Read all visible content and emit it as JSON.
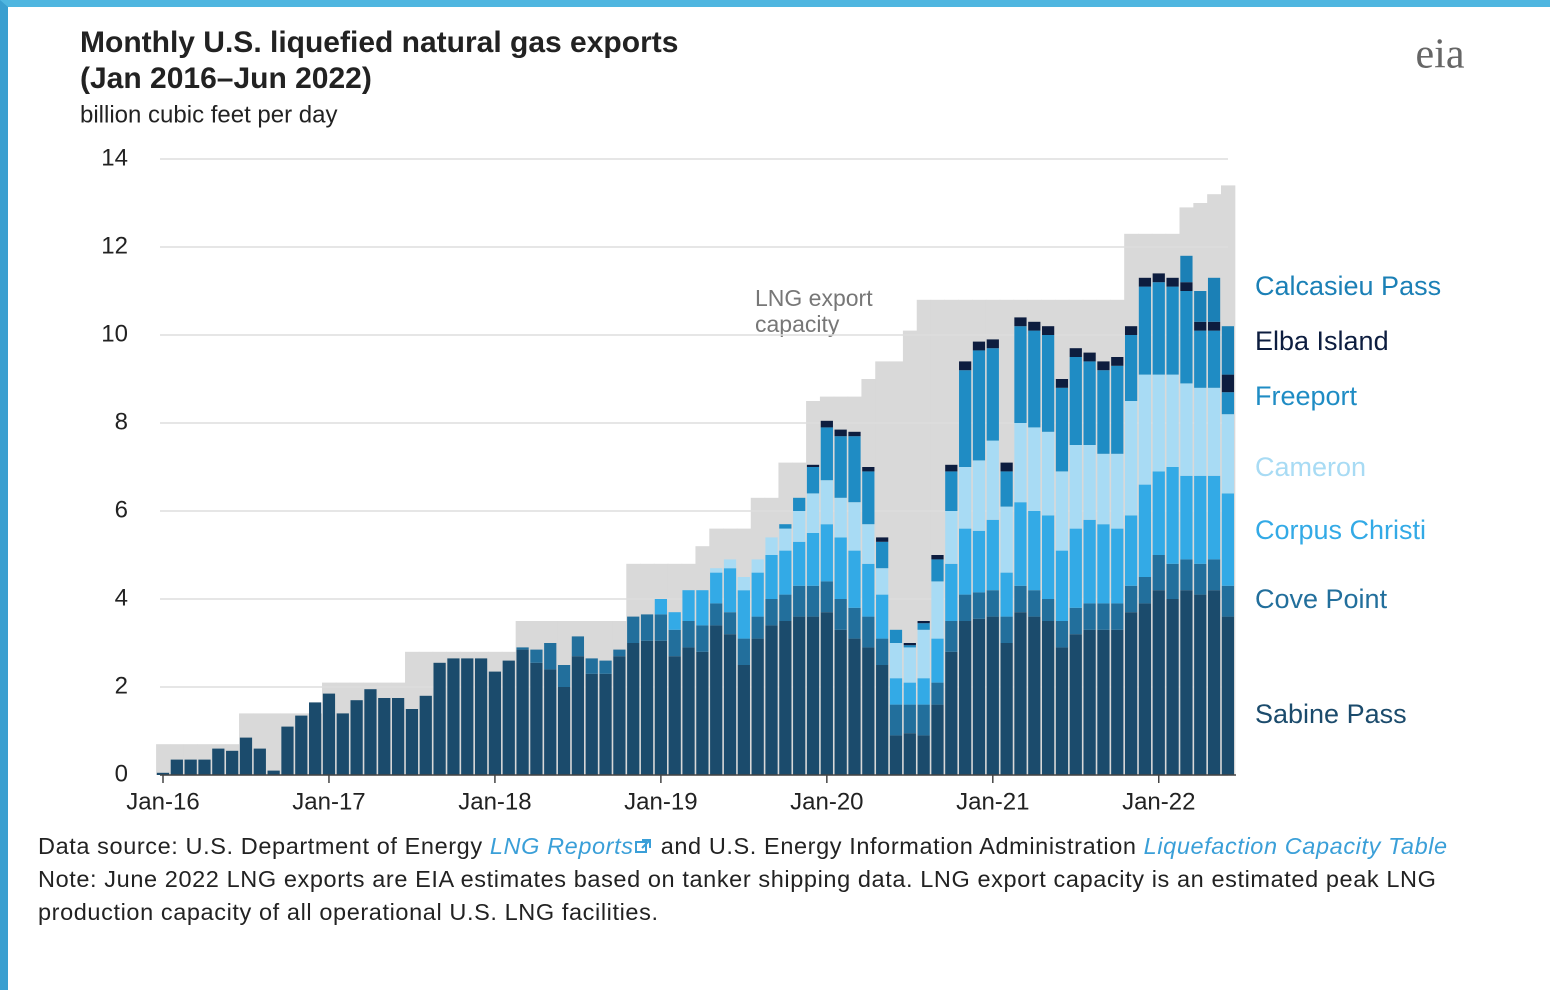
{
  "chart_data": {
    "type": "stacked_bar",
    "title": [
      "Monthly U.S. liquefied natural gas exports",
      "(Jan 2016–Jun 2022)"
    ],
    "subtitle": "billion cubic feet per day",
    "logo": "eia",
    "annotation": [
      "LNG export",
      "capacity"
    ],
    "categories": [
      "Jan-16",
      null,
      null,
      null,
      null,
      null,
      null,
      null,
      null,
      null,
      null,
      null,
      "Jan-17",
      null,
      null,
      null,
      null,
      null,
      null,
      null,
      null,
      null,
      null,
      null,
      "Jan-18",
      null,
      null,
      null,
      null,
      null,
      null,
      null,
      null,
      null,
      null,
      null,
      "Jan-19",
      null,
      null,
      null,
      null,
      null,
      null,
      null,
      null,
      null,
      null,
      null,
      "Jan-20",
      null,
      null,
      null,
      null,
      null,
      null,
      null,
      null,
      null,
      null,
      null,
      "Jan-21",
      null,
      null,
      null,
      null,
      null,
      null,
      null,
      null,
      null,
      null,
      null,
      "Jan-22",
      null,
      null,
      null,
      null,
      null
    ],
    "ylim": [
      0,
      14
    ],
    "yticks": [
      0,
      2,
      4,
      6,
      8,
      10,
      12,
      14
    ],
    "grid": true,
    "capacity": {
      "color": "#d9d9d9",
      "values": [
        0.7,
        0.7,
        0.7,
        0.7,
        0.7,
        0.7,
        1.4,
        1.4,
        1.4,
        1.4,
        1.4,
        1.4,
        2.1,
        2.1,
        2.1,
        2.1,
        2.1,
        2.1,
        2.8,
        2.8,
        2.8,
        2.8,
        2.8,
        2.8,
        2.8,
        2.8,
        3.5,
        3.5,
        3.5,
        3.5,
        3.5,
        3.5,
        3.5,
        3.5,
        4.8,
        4.8,
        4.8,
        4.8,
        4.8,
        5.2,
        5.6,
        5.6,
        5.6,
        6.3,
        6.3,
        7.1,
        7.1,
        8.5,
        8.6,
        8.6,
        8.6,
        9.0,
        9.4,
        9.4,
        10.1,
        10.8,
        10.8,
        10.8,
        10.8,
        10.8,
        10.8,
        10.8,
        10.8,
        10.8,
        10.8,
        10.8,
        10.8,
        10.8,
        10.8,
        10.8,
        12.3,
        12.3,
        12.3,
        12.3,
        12.9,
        13.0,
        13.2,
        13.4
      ]
    },
    "series": [
      {
        "name": "Sabine Pass",
        "color": "#1b4b6c",
        "values": [
          0.05,
          0.35,
          0.35,
          0.35,
          0.6,
          0.55,
          0.85,
          0.6,
          0.1,
          1.1,
          1.35,
          1.65,
          1.85,
          1.4,
          1.7,
          1.95,
          1.75,
          1.75,
          1.5,
          1.8,
          2.55,
          2.65,
          2.65,
          2.65,
          2.35,
          2.6,
          2.85,
          2.55,
          2.4,
          2.0,
          2.7,
          2.3,
          2.3,
          2.7,
          3.0,
          3.05,
          3.05,
          2.7,
          2.9,
          2.8,
          3.4,
          3.2,
          2.5,
          3.1,
          3.4,
          3.5,
          3.6,
          3.6,
          3.7,
          3.3,
          3.1,
          2.9,
          2.5,
          0.9,
          0.95,
          0.9,
          1.6,
          2.8,
          3.5,
          3.55,
          3.6,
          3.0,
          3.7,
          3.6,
          3.5,
          2.9,
          3.2,
          3.3,
          3.3,
          3.3,
          3.7,
          3.9,
          4.2,
          4.0,
          4.2,
          4.1,
          4.2,
          3.6
        ]
      },
      {
        "name": "Cove Point",
        "color": "#226f9c",
        "values": [
          0,
          0,
          0,
          0,
          0,
          0,
          0,
          0,
          0,
          0,
          0,
          0,
          0,
          0,
          0,
          0,
          0,
          0,
          0,
          0,
          0,
          0,
          0,
          0,
          0,
          0,
          0.05,
          0.3,
          0.6,
          0.5,
          0.45,
          0.35,
          0.3,
          0.15,
          0.6,
          0.6,
          0.6,
          0.6,
          0.6,
          0.6,
          0.5,
          0.5,
          0.6,
          0.5,
          0.6,
          0.6,
          0.7,
          0.7,
          0.7,
          0.7,
          0.7,
          0.7,
          0.6,
          0.7,
          0.65,
          0.7,
          0.5,
          0.7,
          0.6,
          0.6,
          0.6,
          0.6,
          0.6,
          0.6,
          0.5,
          0.6,
          0.6,
          0.6,
          0.6,
          0.6,
          0.6,
          0.6,
          0.8,
          0.8,
          0.7,
          0.7,
          0.7,
          0.7
        ]
      },
      {
        "name": "Corpus Christi",
        "color": "#33aae6",
        "values": [
          0,
          0,
          0,
          0,
          0,
          0,
          0,
          0,
          0,
          0,
          0,
          0,
          0,
          0,
          0,
          0,
          0,
          0,
          0,
          0,
          0,
          0,
          0,
          0,
          0,
          0,
          0,
          0,
          0,
          0,
          0,
          0,
          0,
          0,
          0,
          0,
          0.35,
          0.4,
          0.7,
          0.8,
          0.7,
          1.0,
          1.1,
          1.0,
          1.0,
          1.0,
          1.0,
          1.2,
          1.3,
          1.4,
          1.3,
          1.2,
          1.0,
          0.6,
          0.5,
          0.6,
          1.0,
          1.3,
          1.5,
          1.4,
          1.6,
          1.0,
          1.9,
          1.8,
          1.9,
          1.6,
          1.8,
          1.9,
          1.8,
          1.7,
          1.6,
          2.1,
          1.9,
          2.2,
          1.9,
          2.0,
          1.9,
          2.1
        ]
      },
      {
        "name": "Cameron",
        "color": "#a8dbf4",
        "values": [
          0,
          0,
          0,
          0,
          0,
          0,
          0,
          0,
          0,
          0,
          0,
          0,
          0,
          0,
          0,
          0,
          0,
          0,
          0,
          0,
          0,
          0,
          0,
          0,
          0,
          0,
          0,
          0,
          0,
          0,
          0,
          0,
          0,
          0,
          0,
          0,
          0,
          0,
          0,
          0,
          0.1,
          0.2,
          0.3,
          0.3,
          0.4,
          0.5,
          0.7,
          0.9,
          1.0,
          0.9,
          1.1,
          0.9,
          0.6,
          0.8,
          0.8,
          1.1,
          1.3,
          1.2,
          1.4,
          1.6,
          1.8,
          1.5,
          1.8,
          1.9,
          1.9,
          1.8,
          1.9,
          1.7,
          1.6,
          1.7,
          2.6,
          2.5,
          2.2,
          2.1,
          2.1,
          2.0,
          2.0,
          1.8
        ]
      },
      {
        "name": "Freeport",
        "color": "#1f8cc4",
        "values": [
          0,
          0,
          0,
          0,
          0,
          0,
          0,
          0,
          0,
          0,
          0,
          0,
          0,
          0,
          0,
          0,
          0,
          0,
          0,
          0,
          0,
          0,
          0,
          0,
          0,
          0,
          0,
          0,
          0,
          0,
          0,
          0,
          0,
          0,
          0,
          0,
          0,
          0,
          0,
          0,
          0,
          0,
          0,
          0,
          0,
          0.1,
          0.3,
          0.6,
          1.2,
          1.4,
          1.5,
          1.2,
          0.6,
          0.3,
          0.05,
          0.15,
          0.5,
          0.9,
          2.2,
          2.5,
          2.1,
          0.8,
          2.2,
          2.2,
          2.2,
          1.9,
          2.0,
          1.9,
          1.9,
          2.0,
          1.5,
          2.0,
          2.1,
          2.0,
          2.1,
          1.3,
          1.3,
          0.5
        ]
      },
      {
        "name": "Elba Island",
        "color": "#0d1d3f",
        "values": [
          0,
          0,
          0,
          0,
          0,
          0,
          0,
          0,
          0,
          0,
          0,
          0,
          0,
          0,
          0,
          0,
          0,
          0,
          0,
          0,
          0,
          0,
          0,
          0,
          0,
          0,
          0,
          0,
          0,
          0,
          0,
          0,
          0,
          0,
          0,
          0,
          0,
          0,
          0,
          0,
          0,
          0,
          0,
          0,
          0,
          0,
          0,
          0.05,
          0.15,
          0.15,
          0.1,
          0.1,
          0.1,
          0,
          0.05,
          0.05,
          0.1,
          0.15,
          0.2,
          0.2,
          0.2,
          0.2,
          0.2,
          0.2,
          0.2,
          0.2,
          0.2,
          0.2,
          0.2,
          0.2,
          0.2,
          0.2,
          0.2,
          0.2,
          0.2,
          0.2,
          0.2,
          0.4
        ]
      },
      {
        "name": "Calcasieu Pass",
        "color": "#1b80b6",
        "values": [
          0,
          0,
          0,
          0,
          0,
          0,
          0,
          0,
          0,
          0,
          0,
          0,
          0,
          0,
          0,
          0,
          0,
          0,
          0,
          0,
          0,
          0,
          0,
          0,
          0,
          0,
          0,
          0,
          0,
          0,
          0,
          0,
          0,
          0,
          0,
          0,
          0,
          0,
          0,
          0,
          0,
          0,
          0,
          0,
          0,
          0,
          0,
          0,
          0,
          0,
          0,
          0,
          0,
          0,
          0,
          0,
          0,
          0,
          0,
          0,
          0,
          0,
          0,
          0,
          0,
          0,
          0,
          0,
          0,
          0,
          0,
          0,
          0,
          0,
          0.6,
          0.7,
          1.0,
          1.1
        ]
      }
    ],
    "source": [
      "Data source: U.S. Department of Energy ",
      "LNG Reports",
      " and U.S. Energy Information Administration ",
      "Liquefaction Capacity Table"
    ],
    "note": "Note: June 2022 LNG exports are EIA estimates based on tanker shipping data. LNG export capacity is an estimated peak LNG production capacity of all operational U.S. LNG facilities."
  }
}
